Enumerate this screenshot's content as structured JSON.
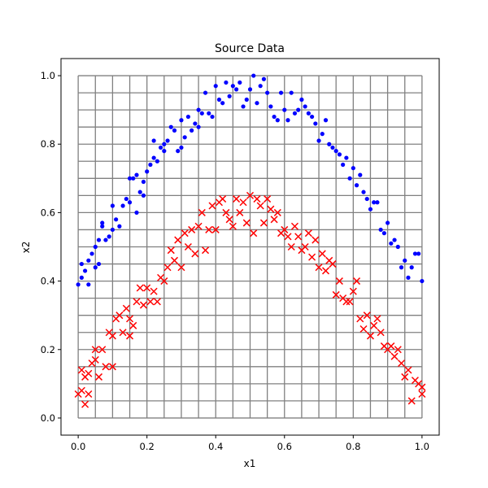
{
  "chart_data": {
    "type": "scatter",
    "title": "Source Data",
    "xlabel": "x1",
    "ylabel": "x2",
    "xlim": [
      -0.05,
      1.05
    ],
    "ylim": [
      -0.05,
      1.05
    ],
    "xticks": [
      0.0,
      0.2,
      0.4,
      0.6,
      0.8,
      1.0
    ],
    "xtick_labels": [
      "0.0",
      "0.2",
      "0.4",
      "0.6",
      "0.8",
      "1.0"
    ],
    "yticks": [
      0.0,
      0.2,
      0.4,
      0.6,
      0.8,
      1.0
    ],
    "ytick_labels": [
      "0.0",
      "0.2",
      "0.4",
      "0.6",
      "0.8",
      "1.0"
    ],
    "grid": {
      "x_values": [
        0,
        0.05,
        0.1,
        0.15,
        0.2,
        0.25,
        0.3,
        0.35,
        0.4,
        0.45,
        0.5,
        0.55,
        0.6,
        0.65,
        0.7,
        0.75,
        0.8,
        0.85,
        0.9,
        0.95,
        1.0
      ],
      "y_values": [
        0,
        0.05,
        0.1,
        0.15,
        0.2,
        0.25,
        0.3,
        0.35,
        0.4,
        0.45,
        0.5,
        0.55,
        0.6,
        0.65,
        0.7,
        0.75,
        0.8,
        0.85,
        0.9,
        0.95,
        1.0
      ],
      "color": "#808080"
    },
    "series": [
      {
        "marker": "dot",
        "color": "#0000ff",
        "points": [
          [
            0.0,
            0.39
          ],
          [
            0.01,
            0.45
          ],
          [
            0.01,
            0.41
          ],
          [
            0.02,
            0.43
          ],
          [
            0.03,
            0.39
          ],
          [
            0.03,
            0.46
          ],
          [
            0.04,
            0.48
          ],
          [
            0.05,
            0.44
          ],
          [
            0.05,
            0.5
          ],
          [
            0.06,
            0.45
          ],
          [
            0.06,
            0.52
          ],
          [
            0.07,
            0.56
          ],
          [
            0.07,
            0.57
          ],
          [
            0.08,
            0.52
          ],
          [
            0.09,
            0.53
          ],
          [
            0.1,
            0.55
          ],
          [
            0.1,
            0.62
          ],
          [
            0.11,
            0.58
          ],
          [
            0.12,
            0.56
          ],
          [
            0.13,
            0.62
          ],
          [
            0.14,
            0.64
          ],
          [
            0.15,
            0.63
          ],
          [
            0.15,
            0.7
          ],
          [
            0.16,
            0.7
          ],
          [
            0.17,
            0.6
          ],
          [
            0.17,
            0.71
          ],
          [
            0.18,
            0.66
          ],
          [
            0.19,
            0.65
          ],
          [
            0.19,
            0.69
          ],
          [
            0.2,
            0.72
          ],
          [
            0.21,
            0.74
          ],
          [
            0.22,
            0.81
          ],
          [
            0.22,
            0.76
          ],
          [
            0.23,
            0.75
          ],
          [
            0.24,
            0.79
          ],
          [
            0.25,
            0.78
          ],
          [
            0.25,
            0.8
          ],
          [
            0.26,
            0.81
          ],
          [
            0.27,
            0.85
          ],
          [
            0.28,
            0.84
          ],
          [
            0.29,
            0.78
          ],
          [
            0.3,
            0.79
          ],
          [
            0.3,
            0.87
          ],
          [
            0.31,
            0.82
          ],
          [
            0.32,
            0.88
          ],
          [
            0.33,
            0.84
          ],
          [
            0.34,
            0.86
          ],
          [
            0.35,
            0.9
          ],
          [
            0.35,
            0.85
          ],
          [
            0.36,
            0.89
          ],
          [
            0.37,
            0.95
          ],
          [
            0.38,
            0.89
          ],
          [
            0.39,
            0.88
          ],
          [
            0.4,
            0.97
          ],
          [
            0.41,
            0.93
          ],
          [
            0.42,
            0.92
          ],
          [
            0.43,
            0.98
          ],
          [
            0.44,
            0.94
          ],
          [
            0.45,
            0.97
          ],
          [
            0.46,
            0.96
          ],
          [
            0.47,
            0.98
          ],
          [
            0.48,
            0.91
          ],
          [
            0.49,
            0.93
          ],
          [
            0.5,
            0.96
          ],
          [
            0.51,
            1.0
          ],
          [
            0.52,
            0.92
          ],
          [
            0.53,
            0.97
          ],
          [
            0.54,
            0.99
          ],
          [
            0.55,
            0.95
          ],
          [
            0.56,
            0.91
          ],
          [
            0.57,
            0.88
          ],
          [
            0.58,
            0.87
          ],
          [
            0.59,
            0.95
          ],
          [
            0.6,
            0.9
          ],
          [
            0.61,
            0.87
          ],
          [
            0.62,
            0.95
          ],
          [
            0.63,
            0.89
          ],
          [
            0.64,
            0.9
          ],
          [
            0.65,
            0.93
          ],
          [
            0.66,
            0.91
          ],
          [
            0.67,
            0.89
          ],
          [
            0.68,
            0.88
          ],
          [
            0.69,
            0.86
          ],
          [
            0.7,
            0.81
          ],
          [
            0.71,
            0.83
          ],
          [
            0.72,
            0.87
          ],
          [
            0.73,
            0.8
          ],
          [
            0.74,
            0.79
          ],
          [
            0.75,
            0.78
          ],
          [
            0.76,
            0.77
          ],
          [
            0.77,
            0.74
          ],
          [
            0.78,
            0.76
          ],
          [
            0.79,
            0.7
          ],
          [
            0.8,
            0.73
          ],
          [
            0.81,
            0.68
          ],
          [
            0.82,
            0.71
          ],
          [
            0.83,
            0.66
          ],
          [
            0.84,
            0.64
          ],
          [
            0.85,
            0.61
          ],
          [
            0.86,
            0.63
          ],
          [
            0.87,
            0.63
          ],
          [
            0.88,
            0.55
          ],
          [
            0.89,
            0.54
          ],
          [
            0.9,
            0.57
          ],
          [
            0.91,
            0.51
          ],
          [
            0.92,
            0.52
          ],
          [
            0.93,
            0.5
          ],
          [
            0.94,
            0.44
          ],
          [
            0.95,
            0.46
          ],
          [
            0.96,
            0.41
          ],
          [
            0.97,
            0.44
          ],
          [
            0.98,
            0.48
          ],
          [
            0.99,
            0.48
          ],
          [
            1.0,
            0.4
          ]
        ]
      },
      {
        "marker": "x",
        "color": "#ff0000",
        "points": [
          [
            0.0,
            0.07
          ],
          [
            0.01,
            0.08
          ],
          [
            0.01,
            0.14
          ],
          [
            0.02,
            0.04
          ],
          [
            0.02,
            0.12
          ],
          [
            0.03,
            0.13
          ],
          [
            0.03,
            0.07
          ],
          [
            0.04,
            0.16
          ],
          [
            0.05,
            0.2
          ],
          [
            0.05,
            0.17
          ],
          [
            0.06,
            0.12
          ],
          [
            0.07,
            0.2
          ],
          [
            0.08,
            0.15
          ],
          [
            0.09,
            0.25
          ],
          [
            0.1,
            0.15
          ],
          [
            0.1,
            0.24
          ],
          [
            0.11,
            0.29
          ],
          [
            0.12,
            0.3
          ],
          [
            0.13,
            0.25
          ],
          [
            0.14,
            0.32
          ],
          [
            0.15,
            0.24
          ],
          [
            0.15,
            0.29
          ],
          [
            0.16,
            0.27
          ],
          [
            0.17,
            0.34
          ],
          [
            0.18,
            0.38
          ],
          [
            0.19,
            0.33
          ],
          [
            0.2,
            0.38
          ],
          [
            0.21,
            0.34
          ],
          [
            0.22,
            0.37
          ],
          [
            0.23,
            0.34
          ],
          [
            0.24,
            0.41
          ],
          [
            0.25,
            0.4
          ],
          [
            0.26,
            0.44
          ],
          [
            0.27,
            0.49
          ],
          [
            0.28,
            0.46
          ],
          [
            0.29,
            0.52
          ],
          [
            0.3,
            0.44
          ],
          [
            0.31,
            0.54
          ],
          [
            0.32,
            0.5
          ],
          [
            0.33,
            0.55
          ],
          [
            0.34,
            0.48
          ],
          [
            0.35,
            0.56
          ],
          [
            0.36,
            0.6
          ],
          [
            0.37,
            0.49
          ],
          [
            0.38,
            0.55
          ],
          [
            0.39,
            0.62
          ],
          [
            0.4,
            0.55
          ],
          [
            0.41,
            0.63
          ],
          [
            0.42,
            0.64
          ],
          [
            0.43,
            0.6
          ],
          [
            0.44,
            0.58
          ],
          [
            0.45,
            0.56
          ],
          [
            0.46,
            0.64
          ],
          [
            0.47,
            0.6
          ],
          [
            0.48,
            0.63
          ],
          [
            0.49,
            0.57
          ],
          [
            0.5,
            0.65
          ],
          [
            0.51,
            0.54
          ],
          [
            0.52,
            0.64
          ],
          [
            0.53,
            0.62
          ],
          [
            0.54,
            0.57
          ],
          [
            0.55,
            0.64
          ],
          [
            0.56,
            0.61
          ],
          [
            0.57,
            0.58
          ],
          [
            0.58,
            0.6
          ],
          [
            0.59,
            0.54
          ],
          [
            0.6,
            0.55
          ],
          [
            0.61,
            0.53
          ],
          [
            0.62,
            0.5
          ],
          [
            0.63,
            0.56
          ],
          [
            0.64,
            0.53
          ],
          [
            0.65,
            0.49
          ],
          [
            0.66,
            0.5
          ],
          [
            0.67,
            0.54
          ],
          [
            0.68,
            0.47
          ],
          [
            0.69,
            0.52
          ],
          [
            0.7,
            0.44
          ],
          [
            0.71,
            0.48
          ],
          [
            0.72,
            0.43
          ],
          [
            0.73,
            0.46
          ],
          [
            0.74,
            0.45
          ],
          [
            0.75,
            0.36
          ],
          [
            0.76,
            0.4
          ],
          [
            0.77,
            0.35
          ],
          [
            0.78,
            0.34
          ],
          [
            0.79,
            0.34
          ],
          [
            0.8,
            0.37
          ],
          [
            0.81,
            0.4
          ],
          [
            0.82,
            0.29
          ],
          [
            0.83,
            0.26
          ],
          [
            0.84,
            0.3
          ],
          [
            0.85,
            0.24
          ],
          [
            0.86,
            0.27
          ],
          [
            0.87,
            0.29
          ],
          [
            0.88,
            0.25
          ],
          [
            0.89,
            0.21
          ],
          [
            0.9,
            0.2
          ],
          [
            0.91,
            0.21
          ],
          [
            0.92,
            0.18
          ],
          [
            0.93,
            0.2
          ],
          [
            0.94,
            0.16
          ],
          [
            0.95,
            0.12
          ],
          [
            0.96,
            0.14
          ],
          [
            0.97,
            0.05
          ],
          [
            0.98,
            0.11
          ],
          [
            0.99,
            0.1
          ],
          [
            1.0,
            0.07
          ],
          [
            1.0,
            0.09
          ]
        ]
      }
    ]
  }
}
